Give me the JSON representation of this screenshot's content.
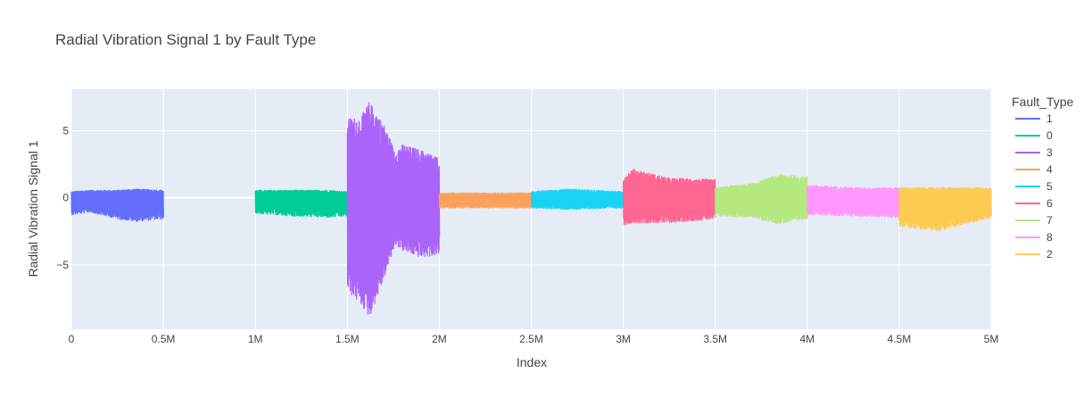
{
  "chart_data": {
    "type": "line",
    "title": "Radial Vibration Signal 1 by Fault Type",
    "xlabel": "Index",
    "ylabel": "Radial Vibration Signal 1",
    "xlim": [
      0,
      5000000
    ],
    "ylim": [
      -9.8,
      8.1
    ],
    "grid": true,
    "x_ticks": [
      {
        "value": 0,
        "label": "0"
      },
      {
        "value": 500000,
        "label": "0.5M"
      },
      {
        "value": 1000000,
        "label": "1M"
      },
      {
        "value": 1500000,
        "label": "1.5M"
      },
      {
        "value": 2000000,
        "label": "2M"
      },
      {
        "value": 2500000,
        "label": "2.5M"
      },
      {
        "value": 3000000,
        "label": "3M"
      },
      {
        "value": 3500000,
        "label": "3.5M"
      },
      {
        "value": 4000000,
        "label": "4M"
      },
      {
        "value": 4500000,
        "label": "4.5M"
      },
      {
        "value": 5000000,
        "label": "5M"
      }
    ],
    "y_ticks": [
      {
        "value": 5,
        "label": "5"
      },
      {
        "value": 0,
        "label": "0"
      },
      {
        "value": -5,
        "label": "−5"
      }
    ],
    "legend_title": "Fault_Type",
    "legend_position": "right",
    "series": [
      {
        "name": "1",
        "color": "#636efa",
        "x_range": [
          0,
          500000
        ],
        "envelope": [
          {
            "x": 0,
            "min": -1.3,
            "max": 0.5
          },
          {
            "x": 100000,
            "min": -1.1,
            "max": 0.6
          },
          {
            "x": 250000,
            "min": -1.6,
            "max": 0.6
          },
          {
            "x": 350000,
            "min": -1.8,
            "max": 0.7
          },
          {
            "x": 500000,
            "min": -1.6,
            "max": 0.6
          }
        ]
      },
      {
        "name": "0",
        "color": "#00cc96",
        "x_range": [
          1000000,
          1500000
        ],
        "envelope": [
          {
            "x": 1000000,
            "min": -1.2,
            "max": 0.6
          },
          {
            "x": 1200000,
            "min": -1.4,
            "max": 0.6
          },
          {
            "x": 1400000,
            "min": -1.5,
            "max": 0.6
          },
          {
            "x": 1500000,
            "min": -1.4,
            "max": 0.5
          }
        ]
      },
      {
        "name": "3",
        "color": "#ab63fa",
        "x_range": [
          1500000,
          2000000
        ],
        "envelope": [
          {
            "x": 1500000,
            "min": -7.0,
            "max": 6.0
          },
          {
            "x": 1570000,
            "min": -8.0,
            "max": 6.0
          },
          {
            "x": 1620000,
            "min": -9.0,
            "max": 7.2
          },
          {
            "x": 1700000,
            "min": -6.0,
            "max": 5.5
          },
          {
            "x": 1760000,
            "min": -3.5,
            "max": 3.5
          },
          {
            "x": 1800000,
            "min": -4.0,
            "max": 4.0
          },
          {
            "x": 1900000,
            "min": -4.5,
            "max": 3.6
          },
          {
            "x": 2000000,
            "min": -4.3,
            "max": 3.0
          }
        ]
      },
      {
        "name": "4",
        "color": "#ffa15a",
        "x_range": [
          2000000,
          2500000
        ],
        "envelope": [
          {
            "x": 2000000,
            "min": -0.8,
            "max": 0.4
          },
          {
            "x": 2500000,
            "min": -0.8,
            "max": 0.4
          }
        ]
      },
      {
        "name": "5",
        "color": "#19d3f3",
        "x_range": [
          2500000,
          3000000
        ],
        "envelope": [
          {
            "x": 2500000,
            "min": -0.8,
            "max": 0.5
          },
          {
            "x": 2700000,
            "min": -0.9,
            "max": 0.7
          },
          {
            "x": 3000000,
            "min": -0.8,
            "max": 0.5
          }
        ]
      },
      {
        "name": "6",
        "color": "#ff6692",
        "x_range": [
          3000000,
          3500000
        ],
        "envelope": [
          {
            "x": 3000000,
            "min": -2.1,
            "max": 1.5
          },
          {
            "x": 3050000,
            "min": -1.9,
            "max": 2.2
          },
          {
            "x": 3250000,
            "min": -1.9,
            "max": 1.5
          },
          {
            "x": 3500000,
            "min": -1.6,
            "max": 1.4
          }
        ]
      },
      {
        "name": "7",
        "color": "#b6e880",
        "x_range": [
          3500000,
          4000000
        ],
        "envelope": [
          {
            "x": 3500000,
            "min": -1.4,
            "max": 0.8
          },
          {
            "x": 3700000,
            "min": -1.5,
            "max": 1.1
          },
          {
            "x": 3850000,
            "min": -2.0,
            "max": 1.8
          },
          {
            "x": 4000000,
            "min": -1.6,
            "max": 1.6
          }
        ]
      },
      {
        "name": "8",
        "color": "#ff97ff",
        "x_range": [
          4000000,
          4500000
        ],
        "envelope": [
          {
            "x": 4000000,
            "min": -1.3,
            "max": 1.0
          },
          {
            "x": 4250000,
            "min": -1.4,
            "max": 0.8
          },
          {
            "x": 4500000,
            "min": -1.5,
            "max": 0.8
          }
        ]
      },
      {
        "name": "2",
        "color": "#fecb52",
        "x_range": [
          4500000,
          5000000
        ],
        "envelope": [
          {
            "x": 4500000,
            "min": -2.2,
            "max": 0.8
          },
          {
            "x": 4720000,
            "min": -2.5,
            "max": 0.8
          },
          {
            "x": 5000000,
            "min": -1.5,
            "max": 0.8
          }
        ]
      }
    ]
  }
}
